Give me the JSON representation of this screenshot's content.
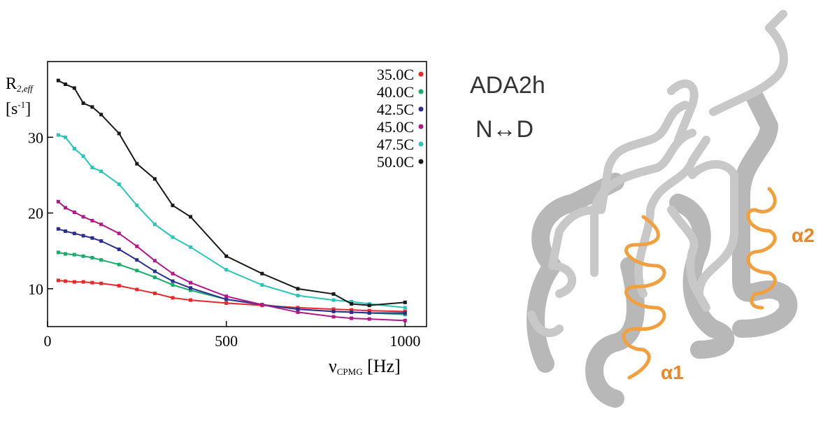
{
  "chart_data": {
    "type": "scatter-line",
    "y_label": [
      "R",
      "2,eff"
    ],
    "y_unit": [
      "[s",
      "-1",
      "]"
    ],
    "x_label": [
      "ν",
      "CPMG",
      " [Hz]"
    ],
    "xlim": [
      0,
      1060
    ],
    "ylim": [
      5,
      40
    ],
    "xticks": [
      0,
      500,
      1000
    ],
    "yticks": [
      10,
      20,
      30
    ],
    "legend": "top-right",
    "x": [
      30,
      50,
      75,
      100,
      125,
      150,
      200,
      250,
      300,
      350,
      400,
      500,
      600,
      700,
      800,
      850,
      900,
      1000
    ],
    "series": [
      {
        "name": "35.0C",
        "color": "#e8282b",
        "values": [
          11.1,
          11,
          10.9,
          10.9,
          10.8,
          10.7,
          10.4,
          9.9,
          9.4,
          8.8,
          8.5,
          8.1,
          7.8,
          7.5,
          7.3,
          7.2,
          7.1,
          7.0
        ]
      },
      {
        "name": "40.0C",
        "color": "#1aaa6a",
        "values": [
          14.8,
          14.6,
          14.5,
          14.3,
          14.1,
          13.8,
          13.2,
          12.4,
          11.5,
          10.5,
          9.8,
          8.6,
          7.9,
          7.3,
          7.0,
          6.9,
          6.8,
          6.6
        ]
      },
      {
        "name": "42.5C",
        "color": "#2a2f8f",
        "values": [
          17.9,
          17.6,
          17.3,
          17.0,
          16.7,
          16.3,
          15.2,
          13.8,
          12.3,
          11.0,
          10.1,
          8.6,
          7.9,
          7.3,
          7.0,
          6.9,
          6.8,
          6.8
        ]
      },
      {
        "name": "45.0C",
        "color": "#b0198a",
        "values": [
          21.5,
          20.7,
          20.1,
          19.5,
          19.0,
          18.5,
          17.3,
          15.6,
          13.7,
          12.0,
          10.8,
          9.0,
          7.9,
          6.9,
          6.3,
          6.1,
          6.0,
          5.8
        ]
      },
      {
        "name": "47.5C",
        "color": "#2cc4b8",
        "values": [
          30.3,
          30,
          28.5,
          27.5,
          26.0,
          25.5,
          23.8,
          21.0,
          18.5,
          16.8,
          15.5,
          12.5,
          10.5,
          9.1,
          8.5,
          8.3,
          8.0,
          7.5
        ]
      },
      {
        "name": "50.0C",
        "color": "#1a1a1a",
        "values": [
          37.5,
          37,
          36.5,
          34.5,
          34,
          33,
          30.5,
          26.5,
          24.5,
          21,
          19.5,
          14.3,
          12,
          10,
          9.3,
          8.0,
          7.8,
          8.2
        ]
      }
    ]
  },
  "figure": {
    "title": "ADA2h",
    "subtitle": "N↔D",
    "helix_1": "α1",
    "helix_2": "α2"
  }
}
